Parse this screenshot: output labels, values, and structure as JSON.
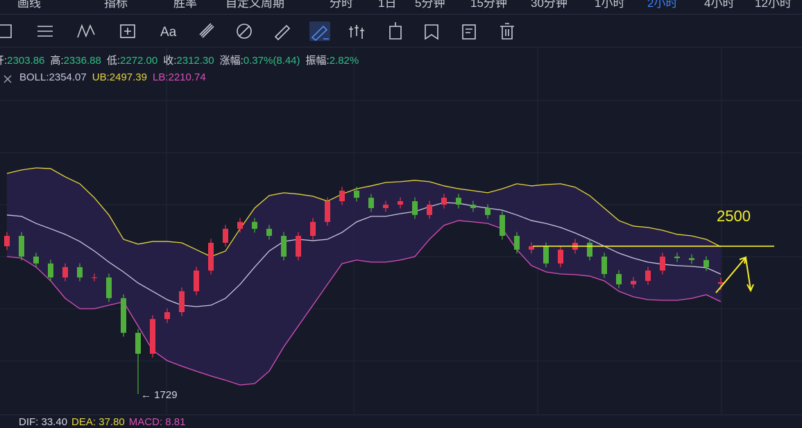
{
  "toolbar": {
    "items": [
      "画线",
      "指标",
      "胜率",
      "自定义周期",
      "分时",
      "1日",
      "5分钟",
      "15分钟",
      "30分钟",
      "1小时",
      "2小时",
      "4小时",
      "12小时"
    ],
    "active": 10,
    "tools_text": "Aa"
  },
  "info": [
    {
      "label": "开:",
      "value": "2303.86"
    },
    {
      "label": "高:",
      "value": "2336.88"
    },
    {
      "label": "低:",
      "value": "2272.00"
    },
    {
      "label": "收:",
      "value": "2312.30"
    },
    {
      "label": "涨幅:",
      "value": "0.37%(8.44)"
    },
    {
      "label": "振幅:",
      "value": "2.82%"
    }
  ],
  "boll": [
    "BOLL:2354.07",
    "UB:2497.39",
    "LB:2210.74"
  ],
  "macd": [
    "DIF: 33.40",
    "DEA: 37.80",
    "MACD: 8.81"
  ],
  "chart_data": {
    "type": "candlestick",
    "open": [
      2500,
      2554,
      2446,
      2410,
      2337,
      2391,
      2337,
      2337,
      2229,
      2048,
      1939,
      2120,
      2156,
      2265,
      2373,
      2518,
      2591,
      2627,
      2591,
      2554,
      2446,
      2554,
      2627,
      2735,
      2790,
      2753,
      2699,
      2717,
      2735,
      2663,
      2717,
      2753,
      2717,
      2699,
      2663,
      2554,
      2482,
      2500,
      2410,
      2482,
      2518,
      2446,
      2355,
      2301,
      2319,
      2373,
      2446,
      2438,
      2428,
      2303.86
    ],
    "high": [
      2574,
      2574,
      2466,
      2430,
      2411,
      2411,
      2357,
      2357,
      2249,
      2068,
      2140,
      2176,
      2285,
      2393,
      2538,
      2611,
      2647,
      2647,
      2611,
      2574,
      2574,
      2647,
      2755,
      2810,
      2810,
      2773,
      2737,
      2755,
      2755,
      2737,
      2773,
      2773,
      2737,
      2719,
      2683,
      2574,
      2520,
      2520,
      2502,
      2538,
      2538,
      2466,
      2375,
      2339,
      2393,
      2466,
      2466,
      2458,
      2448,
      2336.88
    ],
    "low": [
      2480,
      2426,
      2390,
      2317,
      2317,
      2317,
      2317,
      2209,
      2028,
      1729,
      1919,
      2100,
      2136,
      2245,
      2353,
      2498,
      2571,
      2571,
      2534,
      2426,
      2426,
      2534,
      2607,
      2715,
      2733,
      2679,
      2679,
      2697,
      2643,
      2643,
      2697,
      2697,
      2679,
      2643,
      2534,
      2462,
      2462,
      2390,
      2390,
      2462,
      2426,
      2335,
      2281,
      2281,
      2299,
      2353,
      2418,
      2408,
      2371,
      2272.0
    ],
    "close": [
      2554,
      2446,
      2410,
      2337,
      2391,
      2337,
      2337,
      2229,
      2048,
      1939,
      2120,
      2156,
      2265,
      2373,
      2518,
      2591,
      2627,
      2591,
      2554,
      2446,
      2554,
      2627,
      2735,
      2790,
      2753,
      2699,
      2717,
      2735,
      2663,
      2717,
      2753,
      2717,
      2699,
      2663,
      2554,
      2482,
      2500,
      2410,
      2482,
      2518,
      2446,
      2355,
      2301,
      2319,
      2373,
      2446,
      2438,
      2428,
      2391,
      2312.3
    ],
    "upper": [
      2880,
      2898,
      2909,
      2905,
      2862,
      2826,
      2753,
      2663,
      2536,
      2511,
      2525,
      2525,
      2518,
      2482,
      2446,
      2475,
      2591,
      2699,
      2764,
      2779,
      2772,
      2761,
      2735,
      2772,
      2800,
      2815,
      2833,
      2837,
      2844,
      2837,
      2815,
      2800,
      2790,
      2779,
      2800,
      2826,
      2815,
      2822,
      2826,
      2808,
      2764,
      2699,
      2634,
      2605,
      2598,
      2583,
      2562,
      2554,
      2536,
      2497.39
    ],
    "middle": [
      2663,
      2656,
      2619,
      2591,
      2562,
      2525,
      2475,
      2417,
      2366,
      2308,
      2265,
      2221,
      2192,
      2185,
      2192,
      2228,
      2301,
      2391,
      2475,
      2525,
      2536,
      2529,
      2536,
      2572,
      2627,
      2656,
      2656,
      2670,
      2681,
      2706,
      2728,
      2724,
      2710,
      2699,
      2688,
      2663,
      2634,
      2619,
      2598,
      2569,
      2536,
      2500,
      2464,
      2438,
      2417,
      2406,
      2399,
      2395,
      2388,
      2354.07
    ],
    "lower": [
      2446,
      2438,
      2391,
      2319,
      2228,
      2174,
      2174,
      2192,
      2210,
      2084,
      1957,
      1903,
      1874,
      1848,
      1823,
      1801,
      1776,
      1783,
      1848,
      1975,
      2084,
      2192,
      2301,
      2409,
      2428,
      2417,
      2417,
      2428,
      2446,
      2536,
      2609,
      2634,
      2627,
      2619,
      2591,
      2482,
      2399,
      2366,
      2355,
      2352,
      2344,
      2319,
      2265,
      2236,
      2221,
      2218,
      2218,
      2228,
      2247,
      2210.74
    ],
    "up_color": "#e8354f",
    "down_color": "#4fae3c",
    "upper_color": "#e6d53c",
    "middle_color": "#c9c6de",
    "lower_color": "#d94fb8",
    "level": 2500,
    "level_color": "#f4ee2a",
    "low_label": "← 1729",
    "ylim": [
      1613,
      3441
    ]
  }
}
